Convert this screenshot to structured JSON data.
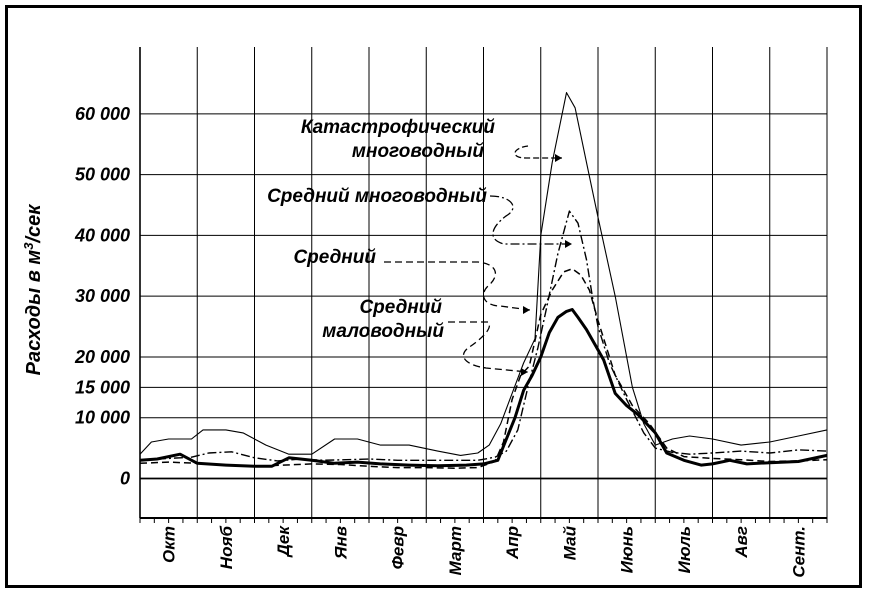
{
  "chart_data": {
    "type": "line",
    "ylabel": "Расходы в м³/сек",
    "ylabel_parts": [
      "Расходы в м",
      "3",
      "/сек"
    ],
    "yticks": [
      {
        "value": 0,
        "label": "0"
      },
      {
        "value": 10000,
        "label": "10 000"
      },
      {
        "value": 15000,
        "label": "15 000"
      },
      {
        "value": 20000,
        "label": "20 000"
      },
      {
        "value": 30000,
        "label": "30 000"
      },
      {
        "value": 40000,
        "label": "40 000"
      },
      {
        "value": 50000,
        "label": "50 000"
      },
      {
        "value": 60000,
        "label": "60 000"
      }
    ],
    "ylim": [
      -6500,
      71000
    ],
    "xlim": [
      0,
      12
    ],
    "months": [
      "Окт",
      "Нояб",
      "Дек",
      "Янв",
      "Февр",
      "Март",
      "Апр",
      "Май",
      "Июнь",
      "Июль",
      "Авг",
      "Сент."
    ],
    "grid": true,
    "series": [
      {
        "name": "Катастрофический многоводный",
        "style": "thin-solid",
        "x": [
          0,
          0.2,
          0.5,
          0.9,
          1.1,
          1.5,
          1.8,
          2.2,
          2.6,
          3.0,
          3.4,
          3.8,
          4.2,
          4.7,
          5.2,
          5.6,
          5.9,
          6.1,
          6.3,
          6.5,
          6.7,
          6.9,
          7.0,
          7.2,
          7.45,
          7.6,
          7.8,
          8.0,
          8.3,
          8.6,
          8.8,
          9.0,
          9.3,
          9.6,
          10.0,
          10.5,
          11.0,
          11.5,
          12.0
        ],
        "y": [
          4000,
          6000,
          6500,
          6500,
          8000,
          8000,
          7500,
          5500,
          4000,
          4000,
          6500,
          6500,
          5500,
          5500,
          4500,
          3800,
          4200,
          5500,
          9000,
          14000,
          19000,
          23000,
          40000,
          52000,
          63500,
          61000,
          52000,
          43000,
          30000,
          15000,
          9000,
          5500,
          6500,
          7000,
          6500,
          5500,
          6000,
          7000,
          8000
        ]
      },
      {
        "name": "Средний многоводный",
        "style": "dash-dot",
        "x": [
          0,
          0.5,
          0.9,
          1.2,
          1.6,
          2.0,
          2.4,
          2.8,
          3.2,
          3.6,
          4.0,
          4.5,
          5.0,
          5.5,
          5.9,
          6.2,
          6.4,
          6.6,
          6.8,
          6.95,
          7.1,
          7.3,
          7.5,
          7.65,
          7.8,
          7.9,
          8.0,
          8.2,
          8.5,
          8.8,
          9.0,
          9.3,
          9.6,
          10.0,
          10.5,
          11.0,
          11.5,
          12.0
        ],
        "y": [
          3000,
          3300,
          3500,
          4200,
          4400,
          3400,
          2900,
          3200,
          3000,
          3100,
          3200,
          3000,
          3000,
          3000,
          3000,
          3500,
          4500,
          8000,
          16000,
          21500,
          28000,
          37000,
          44000,
          42000,
          36000,
          30000,
          25000,
          19000,
          13000,
          7500,
          5000,
          4300,
          4000,
          4200,
          4500,
          4200,
          4700,
          4500
        ]
      },
      {
        "name": "Средний",
        "style": "dashed",
        "x": [
          0,
          0.5,
          1.0,
          1.5,
          2.0,
          2.5,
          3.0,
          3.5,
          4.0,
          4.5,
          5.0,
          5.5,
          5.9,
          6.2,
          6.35,
          6.5,
          6.65,
          6.8,
          7.0,
          7.2,
          7.4,
          7.55,
          7.7,
          7.85,
          8.0,
          8.3,
          8.6,
          8.9,
          9.2,
          9.5,
          10.0,
          10.5,
          11.0,
          11.5,
          12.0
        ],
        "y": [
          2500,
          2700,
          2500,
          2200,
          2000,
          2200,
          2400,
          2300,
          2000,
          1800,
          1800,
          1700,
          1800,
          2800,
          6000,
          13000,
          17000,
          18500,
          27000,
          31000,
          34000,
          34500,
          33500,
          31000,
          26000,
          17000,
          12000,
          9000,
          5000,
          3600,
          3300,
          3100,
          2800,
          2900,
          3100
        ]
      },
      {
        "name": "Средний маловодный",
        "style": "thick-solid",
        "x": [
          0,
          0.3,
          0.7,
          1.0,
          1.5,
          2.0,
          2.3,
          2.6,
          3.0,
          3.4,
          3.8,
          4.2,
          4.7,
          5.2,
          5.7,
          6.0,
          6.25,
          6.4,
          6.55,
          6.7,
          6.85,
          7.0,
          7.15,
          7.3,
          7.45,
          7.55,
          7.65,
          7.8,
          7.95,
          8.1,
          8.3,
          8.5,
          8.7,
          9.0,
          9.2,
          9.5,
          9.8,
          10.0,
          10.3,
          10.6,
          11.0,
          11.5,
          12.0
        ],
        "y": [
          3000,
          3200,
          4000,
          2500,
          2200,
          2000,
          2000,
          3400,
          3000,
          2500,
          2700,
          2400,
          2200,
          2100,
          2200,
          2400,
          3000,
          6500,
          10000,
          14500,
          17000,
          20000,
          24000,
          26500,
          27500,
          27800,
          26500,
          24500,
          22000,
          19500,
          14000,
          12000,
          10500,
          7500,
          4200,
          3000,
          2200,
          2400,
          3000,
          2400,
          2600,
          2800,
          3800
        ]
      }
    ],
    "annotations": {
      "katastrof_line1": "Катастрофический",
      "katastrof_line2": "многоводный",
      "mnogovod": "Средний многоводный",
      "sredniy": "Средний",
      "malovod_line1": "Средний",
      "malovod_line2": "маловодный"
    }
  }
}
